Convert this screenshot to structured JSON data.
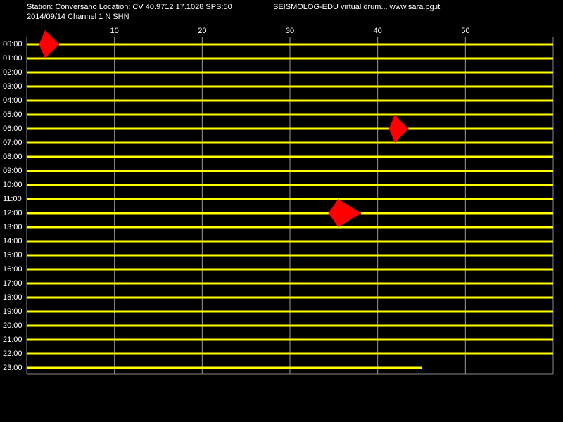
{
  "chart_data": {
    "type": "helicorder",
    "title": "Station: Conversano Location: CV 40.9712 17.1028 SPS:50",
    "subtitle": "2014/09/14  Channel 1 N SHN",
    "source": "SEISMOLOG-EDU virtual drum... www.sara.pg.it",
    "rows": [
      "00:00",
      "01:00",
      "02:00",
      "03:00",
      "04:00",
      "05:00",
      "06:00",
      "07:00",
      "08:00",
      "09:00",
      "10:00",
      "11:00",
      "12:00",
      "13:00",
      "14:00",
      "15:00",
      "16:00",
      "17:00",
      "18:00",
      "19:00",
      "20:00",
      "21:00",
      "22:00",
      "23:00"
    ],
    "row_end": [
      60,
      60,
      60,
      60,
      60,
      60,
      60,
      60,
      60,
      60,
      60,
      60,
      60,
      60,
      60,
      60,
      60,
      60,
      60,
      60,
      60,
      60,
      60,
      45
    ],
    "xlim": [
      0,
      60
    ],
    "xticks": [
      10,
      20,
      30,
      40,
      50
    ],
    "grid": true,
    "trace_color": "#ffff00",
    "event_color": "#ff0000",
    "events": [
      {
        "row": 0,
        "start": 1.4,
        "end": 3.7
      },
      {
        "row": 6,
        "start": 41.3,
        "end": 43.5
      },
      {
        "row": 12,
        "start": 34.4,
        "end": 38.1
      }
    ]
  }
}
